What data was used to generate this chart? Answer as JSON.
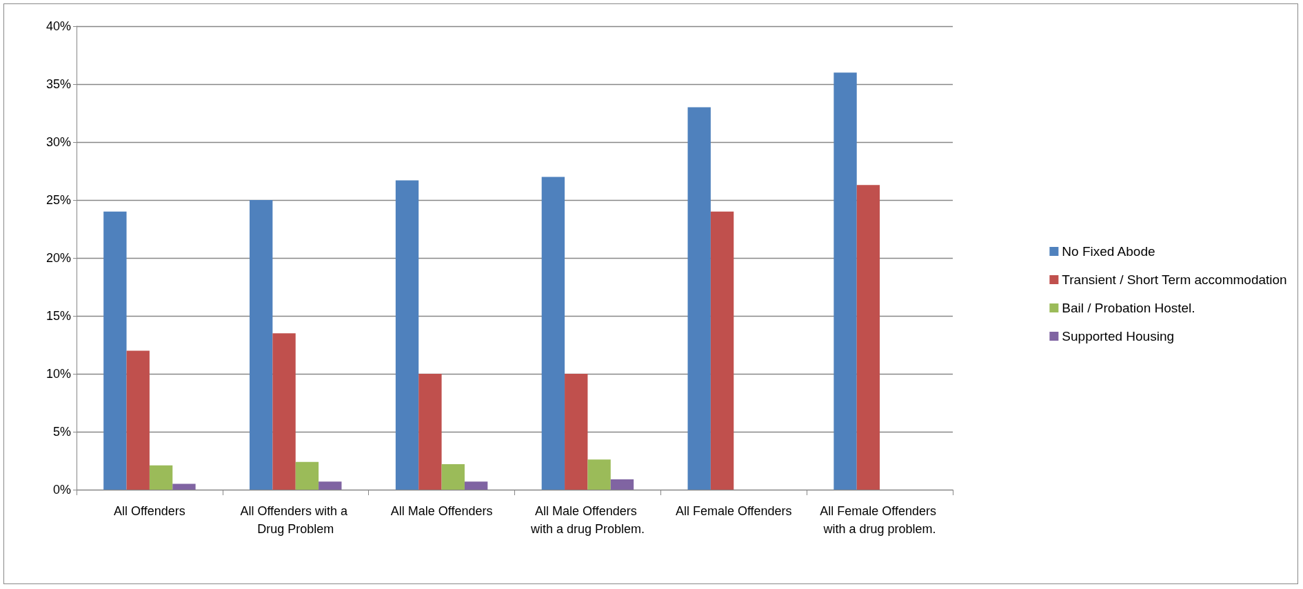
{
  "chart_data": {
    "type": "bar",
    "categories": [
      "All Offenders",
      "All Offenders with a Drug Problem",
      "All Male Offenders",
      "All Male Offenders with a drug Problem.",
      "All Female Offenders",
      "All Female Offenders with a drug problem."
    ],
    "series": [
      {
        "name": "No Fixed Abode",
        "color": "#4f81bd",
        "values": [
          24,
          25,
          26.7,
          27,
          33,
          36
        ]
      },
      {
        "name": "Transient / Short Term accommodation",
        "color": "#c0504d",
        "values": [
          12,
          13.5,
          10,
          10,
          24,
          26.3
        ]
      },
      {
        "name": "Bail / Probation Hostel.",
        "color": "#9bbb59",
        "values": [
          2.1,
          2.4,
          2.2,
          2.6,
          null,
          null
        ]
      },
      {
        "name": "Supported Housing",
        "color": "#8064a2",
        "values": [
          0.5,
          0.7,
          0.7,
          0.9,
          null,
          null
        ]
      }
    ],
    "ylim": [
      0,
      40
    ],
    "yticks": [
      {
        "value": 0,
        "label": "0%"
      },
      {
        "value": 5,
        "label": "5%"
      },
      {
        "value": 10,
        "label": "10%"
      },
      {
        "value": 15,
        "label": "15%"
      },
      {
        "value": 20,
        "label": "20%"
      },
      {
        "value": 25,
        "label": "25%"
      },
      {
        "value": 30,
        "label": "30%"
      },
      {
        "value": 35,
        "label": "35%"
      },
      {
        "value": 40,
        "label": "40%"
      }
    ],
    "grid": "y",
    "legend": "right"
  }
}
